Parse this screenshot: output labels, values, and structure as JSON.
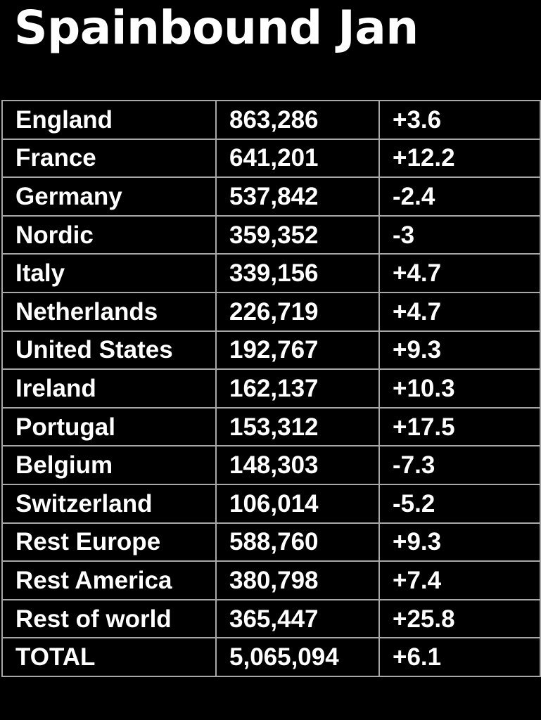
{
  "title": "Spainbound Jan",
  "chart_data": {
    "type": "table",
    "title": "Spainbound Jan",
    "columns": [
      "",
      "",
      ""
    ],
    "rows": [
      {
        "country": "England",
        "value": "863,286",
        "change": "+3.6"
      },
      {
        "country": "France",
        "value": "641,201",
        "change": "+12.2"
      },
      {
        "country": "Germany",
        "value": "537,842",
        "change": "-2.4"
      },
      {
        "country": "Nordic",
        "value": "359,352",
        "change": "-3"
      },
      {
        "country": "Italy",
        "value": "339,156",
        "change": "+4.7"
      },
      {
        "country": "Netherlands",
        "value": "226,719",
        "change": "+4.7"
      },
      {
        "country": "United States",
        "value": "192,767",
        "change": "+9.3"
      },
      {
        "country": "Ireland",
        "value": "162,137",
        "change": "+10.3"
      },
      {
        "country": "Portugal",
        "value": "153,312",
        "change": "+17.5"
      },
      {
        "country": "Belgium",
        "value": "148,303",
        "change": "-7.3"
      },
      {
        "country": "Switzerland",
        "value": "106,014",
        "change": "-5.2"
      },
      {
        "country": "Rest Europe",
        "value": "588,760",
        "change": "+9.3"
      },
      {
        "country": "Rest America",
        "value": "380,798",
        "change": "+7.4"
      },
      {
        "country": "Rest of world",
        "value": "365,447",
        "change": "+25.8"
      },
      {
        "country": "TOTAL",
        "value": "5,065,094",
        "change": "+6.1"
      }
    ]
  },
  "colors": {
    "background": "#000000",
    "text": "#ffffff",
    "grid": "#a8a8a8"
  }
}
